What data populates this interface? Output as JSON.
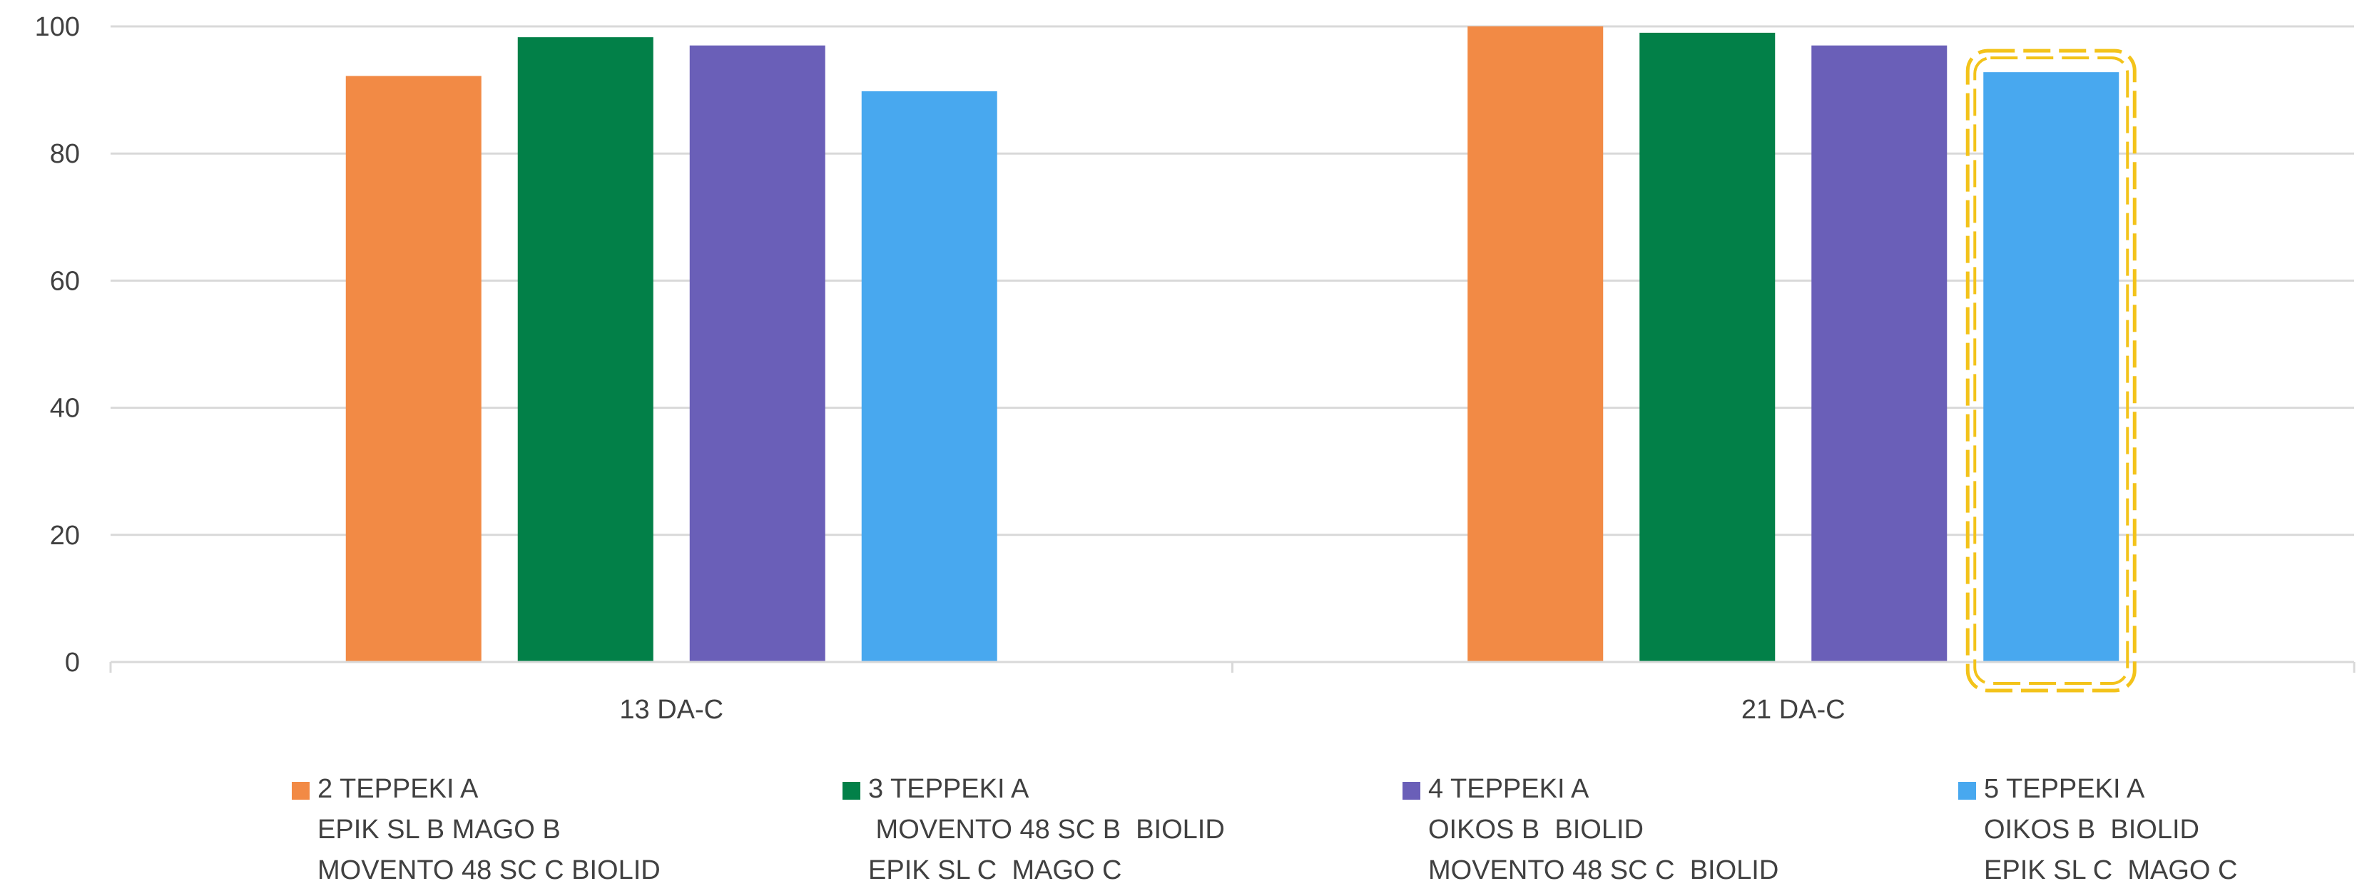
{
  "chart_data": {
    "type": "bar",
    "categories": [
      "13 DA-C",
      "21 DA-C"
    ],
    "ylim": [
      0,
      100
    ],
    "yticks": [
      0,
      20,
      40,
      60,
      80,
      100
    ],
    "grid": true,
    "legend_position": "bottom",
    "series": [
      {
        "name": "2 TEPPEKI A\nEPIK SL B MAGO B\nMOVENTO 48 SC C BIOLID",
        "color": "#F28A45",
        "values": [
          92.2,
          100
        ]
      },
      {
        "name": "3 TEPPEKI A\n MOVENTO 48 SC B  BIOLID\nEPIK SL C  MAGO C",
        "color": "#028048",
        "values": [
          98.3,
          99
        ]
      },
      {
        "name": "4 TEPPEKI A\nOIKOS B  BIOLID\nMOVENTO 48 SC C  BIOLID",
        "color": "#6A5FB8",
        "values": [
          97,
          97
        ]
      },
      {
        "name": "5 TEPPEKI A\nOIKOS B  BIOLID\nEPIK SL C  MAGO C",
        "color": "#48A8EF",
        "values": [
          89.8,
          92.8
        ]
      }
    ],
    "highlight": {
      "series_index": 3,
      "category_index": 1,
      "color": "#F3C31A"
    }
  }
}
